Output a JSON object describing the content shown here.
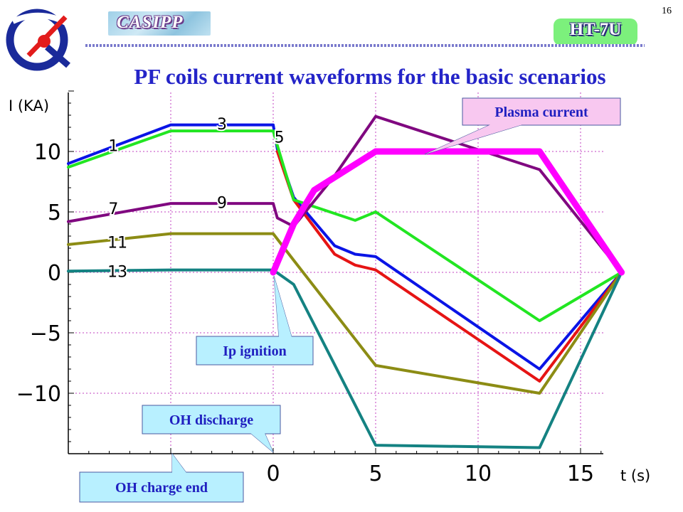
{
  "slide": {
    "number": "16",
    "brand_left": "CASIPP",
    "brand_right": "HT-7U",
    "title": "PF coils current waveforms for the basic scenarios"
  },
  "colors": {
    "title": "#2424c8",
    "grid": "#c040c0",
    "callout_fill": "#b8f0ff",
    "plasma_callout_fill": "#f8c8f0",
    "callout_text": "#2020c0"
  },
  "chart_data": {
    "type": "line",
    "xlabel": "t (s)",
    "ylabel": "I (KA)",
    "xlim": [
      -10,
      18
    ],
    "ylim": [
      -15,
      15
    ],
    "x_ticks": [
      0,
      5,
      10,
      15
    ],
    "y_ticks": [
      10,
      5,
      0,
      -5,
      -10
    ],
    "grid": true,
    "series": [
      {
        "name": "1",
        "color": "#0a14e6",
        "width": 4,
        "points": [
          [
            -10,
            9.0
          ],
          [
            -5,
            12.2
          ],
          [
            0,
            12.2
          ],
          [
            0.2,
            10.2
          ],
          [
            1,
            6.2
          ],
          [
            3,
            2.2
          ],
          [
            4,
            1.5
          ],
          [
            5,
            1.3
          ],
          [
            13,
            -8.0
          ],
          [
            17,
            0
          ]
        ]
      },
      {
        "name": "3",
        "color": "#e61414",
        "width": 4,
        "points": [
          [
            0.2,
            10.0
          ],
          [
            1,
            6.0
          ],
          [
            3,
            1.5
          ],
          [
            4,
            0.6
          ],
          [
            5,
            0.2
          ],
          [
            13,
            -9.0
          ],
          [
            17,
            0
          ]
        ]
      },
      {
        "name": "5",
        "color": "#22e622",
        "width": 4,
        "points": [
          [
            -10,
            8.7
          ],
          [
            -5,
            11.7
          ],
          [
            0,
            11.7
          ],
          [
            0.2,
            10.5
          ],
          [
            1,
            6.0
          ],
          [
            4,
            4.3
          ],
          [
            5,
            5.0
          ],
          [
            13,
            -4.0
          ],
          [
            17,
            0
          ]
        ]
      },
      {
        "name": "7",
        "color": "#800880",
        "width": 4,
        "points": [
          [
            -10,
            4.2
          ],
          [
            -5,
            5.7
          ],
          [
            0,
            5.7
          ],
          [
            0.2,
            4.5
          ],
          [
            1,
            3.8
          ],
          [
            3,
            8.0
          ],
          [
            5,
            12.9
          ],
          [
            13,
            8.5
          ],
          [
            17,
            0
          ]
        ]
      },
      {
        "name": "11",
        "color": "#8c8c14",
        "width": 4,
        "points": [
          [
            -10,
            2.3
          ],
          [
            -5,
            3.2
          ],
          [
            0,
            3.2
          ],
          [
            1,
            1.0
          ],
          [
            5,
            -7.7
          ],
          [
            13,
            -10.0
          ],
          [
            17,
            0
          ]
        ]
      },
      {
        "name": "13",
        "color": "#148282",
        "width": 4,
        "points": [
          [
            -10,
            0.1
          ],
          [
            -5,
            0.2
          ],
          [
            0,
            0.2
          ],
          [
            1,
            -1.0
          ],
          [
            5,
            -14.3
          ],
          [
            13,
            -14.5
          ],
          [
            17,
            0
          ]
        ]
      },
      {
        "name": "Plasma current",
        "color": "#ff00ff",
        "width": 9,
        "points": [
          [
            0,
            0
          ],
          [
            1,
            4
          ],
          [
            2,
            6.8
          ],
          [
            5,
            10
          ],
          [
            13,
            10
          ],
          [
            17,
            0
          ]
        ]
      }
    ],
    "annotations": [
      {
        "text": "3",
        "x": -2.5,
        "y": 12.3
      },
      {
        "text": "5",
        "x": 0.3,
        "y": 11.2
      },
      {
        "text": "1",
        "x": -7.8,
        "y": 10.5
      },
      {
        "text": "9",
        "x": -2.5,
        "y": 5.8
      },
      {
        "text": "7",
        "x": -7.8,
        "y": 5.3
      },
      {
        "text": "11",
        "x": -7.6,
        "y": 2.5
      },
      {
        "text": "13",
        "x": -7.6,
        "y": 0.1
      }
    ]
  },
  "callouts": {
    "plasma": "Plasma current",
    "ip_ignition": "Ip ignition",
    "oh_discharge": "OH discharge",
    "oh_charge_end": "OH charge end"
  }
}
